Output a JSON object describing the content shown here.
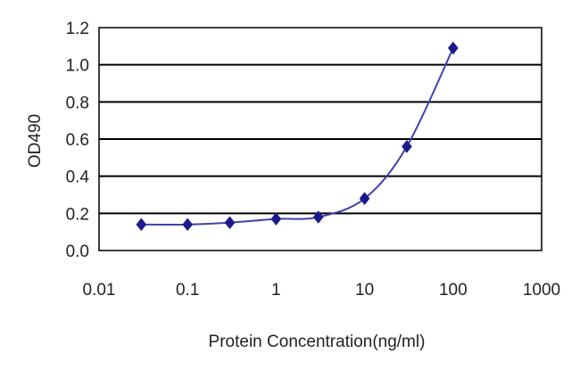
{
  "chart_data": {
    "type": "line",
    "title": "",
    "xlabel": "Protein Concentration(ng/ml)",
    "ylabel": "OD490",
    "xscale": "log",
    "xlim": [
      0.01,
      1000
    ],
    "ylim": [
      0,
      1.2
    ],
    "x_ticks": [
      "0.01",
      "0.1",
      "1",
      "10",
      "100",
      "1000"
    ],
    "y_ticks": [
      "0.0",
      "0.2",
      "0.4",
      "0.6",
      "0.8",
      "1.0",
      "1.2"
    ],
    "grid": "horizontal",
    "legend": "none",
    "series": [
      {
        "x": [
          0.03,
          0.1,
          0.3,
          1,
          3,
          10,
          30,
          100
        ],
        "y": [
          0.14,
          0.14,
          0.15,
          0.17,
          0.18,
          0.28,
          0.56,
          1.09
        ]
      }
    ],
    "colors": {
      "line": "#4040b0",
      "marker": "#1a1a8c",
      "grid": "#000000",
      "plot_border": "#000000"
    }
  }
}
